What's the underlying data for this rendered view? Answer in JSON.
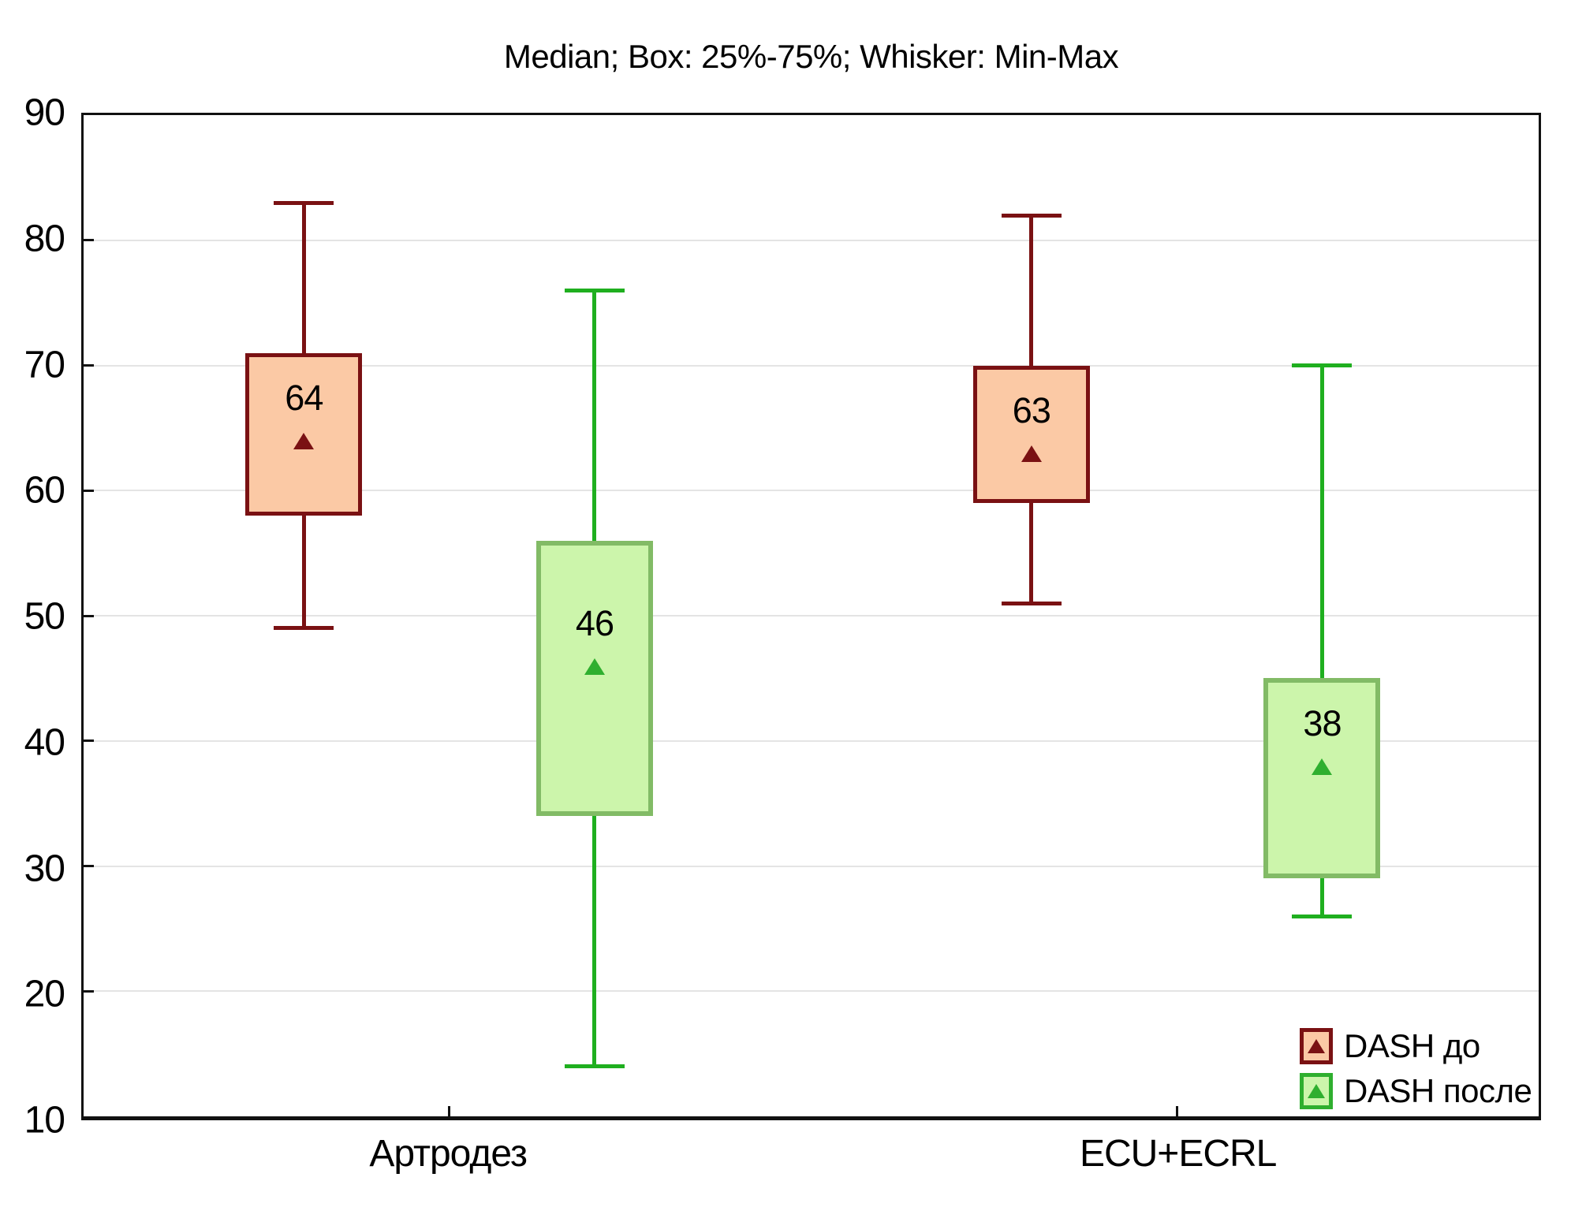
{
  "chart_data": {
    "type": "box",
    "title": "Median; Box: 25%-75%; Whisker: Min-Max",
    "categories": [
      "Артродез",
      "ECU+ECRL"
    ],
    "category_centers": [
      0.2513,
      0.7513
    ],
    "ylim": [
      10,
      90
    ],
    "yticks": [
      10,
      20,
      30,
      40,
      50,
      60,
      70,
      80,
      90
    ],
    "grid": "horizontal",
    "legend_position": "bottom-right",
    "axis_color": "#111111",
    "grid_color": "#E4E4E4",
    "text_color": "#000000",
    "series": [
      {
        "name": "DASH до",
        "offset": -0.0999,
        "line": "#7A1113",
        "box_border": "#7A1113",
        "fill": "#FBC9A5",
        "marker": "#7A1113",
        "border_width": 5,
        "boxes": [
          {
            "category": "Артродез",
            "min": 49,
            "q1": 58,
            "median": 64,
            "q3": 71,
            "max": 83,
            "label": "64"
          },
          {
            "category": "ECU+ECRL",
            "min": 51,
            "q1": 59,
            "median": 63,
            "q3": 70,
            "max": 82,
            "label": "63"
          }
        ]
      },
      {
        "name": "DASH после",
        "offset": 0.0999,
        "line": "#1FAF1F",
        "box_border": "#82BB66",
        "fill": "#CCF5AB",
        "marker": "#2FAF2F",
        "border_width": 6,
        "boxes": [
          {
            "category": "Артродез",
            "min": 14,
            "q1": 34,
            "median": 46,
            "q3": 56,
            "max": 76,
            "label": "46"
          },
          {
            "category": "ECU+ECRL",
            "min": 26,
            "q1": 29,
            "median": 38,
            "q3": 45,
            "max": 70,
            "label": "38"
          }
        ]
      }
    ]
  }
}
